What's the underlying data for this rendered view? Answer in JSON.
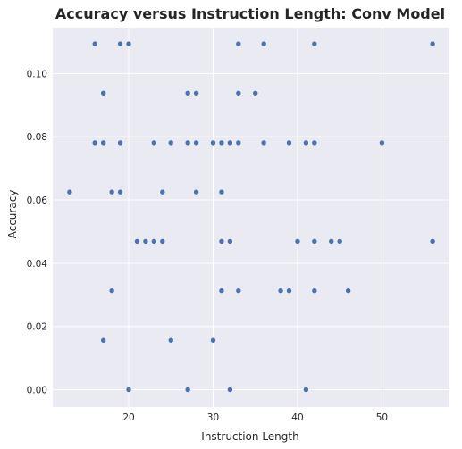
{
  "chart_data": {
    "type": "scatter",
    "title": "Accuracy versus Instruction Length: Conv Model",
    "xlabel": "Instruction Length",
    "ylabel": "Accuracy",
    "xlim": [
      11,
      58
    ],
    "ylim": [
      -0.0055,
      0.1145
    ],
    "xticks": [
      20,
      30,
      40,
      50
    ],
    "xtick_labels": [
      "20",
      "30",
      "40",
      "50"
    ],
    "yticks": [
      0.0,
      0.02,
      0.04,
      0.06,
      0.08,
      0.1
    ],
    "ytick_labels": [
      "0.00",
      "0.02",
      "0.04",
      "0.06",
      "0.08",
      "0.10"
    ],
    "grid": true,
    "style": {
      "background": "#EAEAF2",
      "grid_color": "#FFFFFF",
      "marker_color": "#4C72B0"
    },
    "points": [
      {
        "x": 16,
        "y": 0.1094
      },
      {
        "x": 19,
        "y": 0.1094
      },
      {
        "x": 20,
        "y": 0.1094
      },
      {
        "x": 33,
        "y": 0.1094
      },
      {
        "x": 36,
        "y": 0.1094
      },
      {
        "x": 42,
        "y": 0.1094
      },
      {
        "x": 56,
        "y": 0.1094
      },
      {
        "x": 17,
        "y": 0.0938
      },
      {
        "x": 27,
        "y": 0.0938
      },
      {
        "x": 28,
        "y": 0.0938
      },
      {
        "x": 33,
        "y": 0.0938
      },
      {
        "x": 35,
        "y": 0.0938
      },
      {
        "x": 16,
        "y": 0.0781
      },
      {
        "x": 17,
        "y": 0.0781
      },
      {
        "x": 19,
        "y": 0.0781
      },
      {
        "x": 23,
        "y": 0.0781
      },
      {
        "x": 25,
        "y": 0.0781
      },
      {
        "x": 27,
        "y": 0.0781
      },
      {
        "x": 28,
        "y": 0.0781
      },
      {
        "x": 30,
        "y": 0.0781
      },
      {
        "x": 31,
        "y": 0.0781
      },
      {
        "x": 32,
        "y": 0.0781
      },
      {
        "x": 33,
        "y": 0.0781
      },
      {
        "x": 36,
        "y": 0.0781
      },
      {
        "x": 39,
        "y": 0.0781
      },
      {
        "x": 41,
        "y": 0.0781
      },
      {
        "x": 42,
        "y": 0.0781
      },
      {
        "x": 50,
        "y": 0.0781
      },
      {
        "x": 13,
        "y": 0.0625
      },
      {
        "x": 18,
        "y": 0.0625
      },
      {
        "x": 19,
        "y": 0.0625
      },
      {
        "x": 24,
        "y": 0.0625
      },
      {
        "x": 28,
        "y": 0.0625
      },
      {
        "x": 31,
        "y": 0.0625
      },
      {
        "x": 21,
        "y": 0.0469
      },
      {
        "x": 22,
        "y": 0.0469
      },
      {
        "x": 23,
        "y": 0.0469
      },
      {
        "x": 24,
        "y": 0.0469
      },
      {
        "x": 31,
        "y": 0.0469
      },
      {
        "x": 32,
        "y": 0.0469
      },
      {
        "x": 40,
        "y": 0.0469
      },
      {
        "x": 42,
        "y": 0.0469
      },
      {
        "x": 44,
        "y": 0.0469
      },
      {
        "x": 45,
        "y": 0.0469
      },
      {
        "x": 56,
        "y": 0.0469
      },
      {
        "x": 18,
        "y": 0.0313
      },
      {
        "x": 31,
        "y": 0.0313
      },
      {
        "x": 33,
        "y": 0.0313
      },
      {
        "x": 38,
        "y": 0.0313
      },
      {
        "x": 39,
        "y": 0.0313
      },
      {
        "x": 42,
        "y": 0.0313
      },
      {
        "x": 46,
        "y": 0.0313
      },
      {
        "x": 17,
        "y": 0.0156
      },
      {
        "x": 25,
        "y": 0.0156
      },
      {
        "x": 30,
        "y": 0.0156
      },
      {
        "x": 20,
        "y": 0.0
      },
      {
        "x": 27,
        "y": 0.0
      },
      {
        "x": 32,
        "y": 0.0
      },
      {
        "x": 41,
        "y": 0.0
      }
    ]
  }
}
